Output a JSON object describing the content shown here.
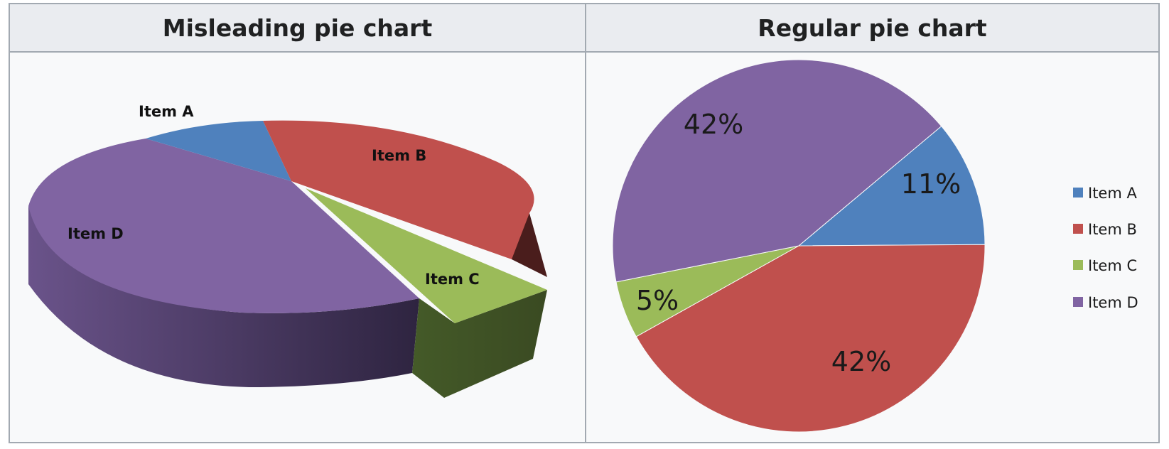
{
  "headers": {
    "left": "Misleading pie chart",
    "right": "Regular pie chart"
  },
  "colors": {
    "item_a": "#4f81bd",
    "item_b": "#c0504d",
    "item_c": "#9bbb59",
    "item_d": "#8064a2"
  },
  "chart_data": [
    {
      "type": "pie",
      "title": "Misleading pie chart",
      "style": "3d-exploded",
      "slices": [
        {
          "label": "Item A"
        },
        {
          "label": "Item B"
        },
        {
          "label": "Item C",
          "exploded": true
        },
        {
          "label": "Item D"
        }
      ]
    },
    {
      "type": "pie",
      "title": "Regular pie chart",
      "categories": [
        "Item A",
        "Item B",
        "Item C",
        "Item D"
      ],
      "values": [
        11,
        42,
        5,
        42
      ],
      "value_labels": [
        "11%",
        "42%",
        "5%",
        "42%"
      ],
      "legend": "right"
    }
  ]
}
